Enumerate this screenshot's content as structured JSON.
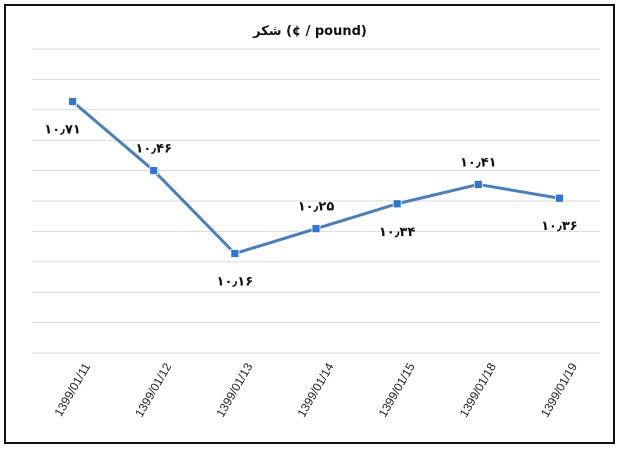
{
  "chart_data": {
    "type": "line",
    "title": "شکر  (¢ / pound)",
    "categories": [
      "1399/01/11",
      "1399/01/12",
      "1399/01/13",
      "1399/01/14",
      "1399/01/15",
      "1399/01/18",
      "1399/01/19"
    ],
    "series": [
      {
        "values": [
          10.71,
          10.46,
          10.16,
          10.25,
          10.34,
          10.41,
          10.36
        ],
        "data_labels": [
          "۱۰٫۷۱",
          "۱۰٫۴۶",
          "۱۰٫۱۶",
          "۱۰٫۲۵",
          "۱۰٫۳۴",
          "۱۰٫۴۱",
          "۱۰٫۳۶"
        ],
        "color": "#4a7ebb",
        "marker_color": "#2e75d6"
      }
    ],
    "ylim": [
      9.8,
      10.9
    ],
    "y_axis_visible": false,
    "grid": "horizontal",
    "grid_color": "#d9d9d9",
    "legend": "none",
    "xlabel": "",
    "ylabel": ""
  }
}
